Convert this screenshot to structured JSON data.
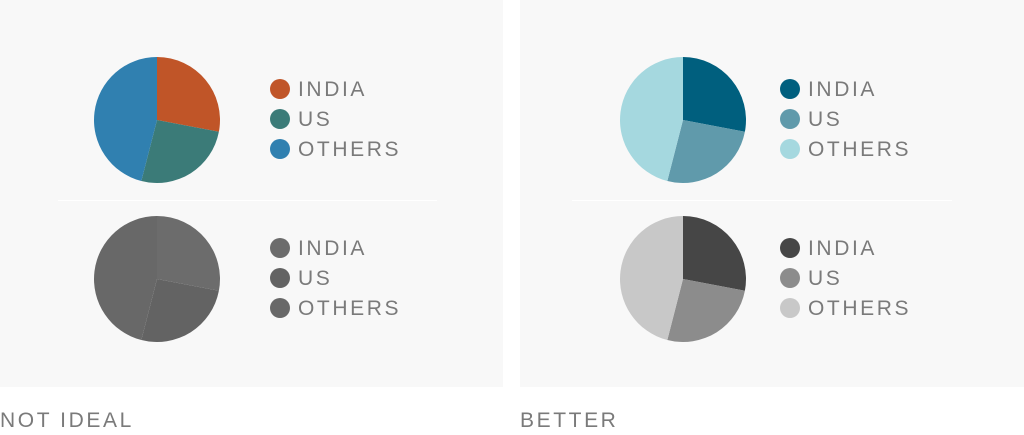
{
  "chart_data": [
    {
      "type": "pie",
      "panel": "not-ideal",
      "variant": "color",
      "categories": [
        "INDIA",
        "US",
        "OTHERS"
      ],
      "values": [
        28,
        26,
        46
      ],
      "colors": [
        "#c05528",
        "#3b7b78",
        "#3080b0"
      ]
    },
    {
      "type": "pie",
      "panel": "not-ideal",
      "variant": "grayscale",
      "categories": [
        "INDIA",
        "US",
        "OTHERS"
      ],
      "values": [
        28,
        26,
        46
      ],
      "colors": [
        "#6c6c6c",
        "#636363",
        "#686868"
      ]
    },
    {
      "type": "pie",
      "panel": "better",
      "variant": "color",
      "categories": [
        "INDIA",
        "US",
        "OTHERS"
      ],
      "values": [
        28,
        26,
        46
      ],
      "colors": [
        "#005f7e",
        "#609aab",
        "#a5d8df"
      ]
    },
    {
      "type": "pie",
      "panel": "better",
      "variant": "grayscale",
      "categories": [
        "INDIA",
        "US",
        "OTHERS"
      ],
      "values": [
        28,
        26,
        46
      ],
      "colors": [
        "#464646",
        "#8c8c8c",
        "#c8c8c8"
      ]
    }
  ],
  "captions": {
    "left": "NOT IDEAL",
    "right": "BETTER"
  }
}
